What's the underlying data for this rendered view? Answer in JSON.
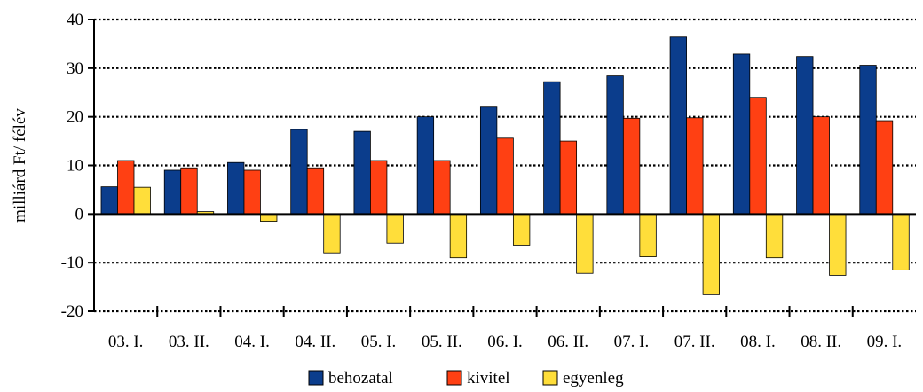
{
  "chart_data": {
    "type": "bar",
    "ylabel": "milliárd Ft/ félév",
    "ylim": [
      -20,
      40
    ],
    "yticks": [
      40,
      30,
      20,
      10,
      0,
      -10,
      -20
    ],
    "categories": [
      "03. I.",
      "03. II.",
      "04. I.",
      "04. II.",
      "05. I.",
      "05. II.",
      "06. I.",
      "06. II.",
      "07. I.",
      "07. II.",
      "08. I.",
      "08. II.",
      "09. I."
    ],
    "series": [
      {
        "name": "behozatal",
        "color": "#0b3d8c",
        "values": [
          5.6,
          9.0,
          10.6,
          17.4,
          17.0,
          20.0,
          22.0,
          27.2,
          28.4,
          36.4,
          32.9,
          32.4,
          30.6
        ]
      },
      {
        "name": "kivitel",
        "color": "#ff4013",
        "values": [
          11.0,
          9.5,
          9.0,
          9.5,
          11.0,
          11.0,
          15.6,
          15.0,
          19.7,
          19.8,
          24.0,
          20.0,
          19.2
        ]
      },
      {
        "name": "egyenleg",
        "color": "#ffde3a",
        "values": [
          5.5,
          0.5,
          -1.5,
          -8.0,
          -6.0,
          -9.0,
          -6.4,
          -12.2,
          -8.8,
          -16.6,
          -9.0,
          -12.6,
          -11.5
        ]
      }
    ],
    "grid": "horizontal dotted",
    "legend": "bottom"
  }
}
